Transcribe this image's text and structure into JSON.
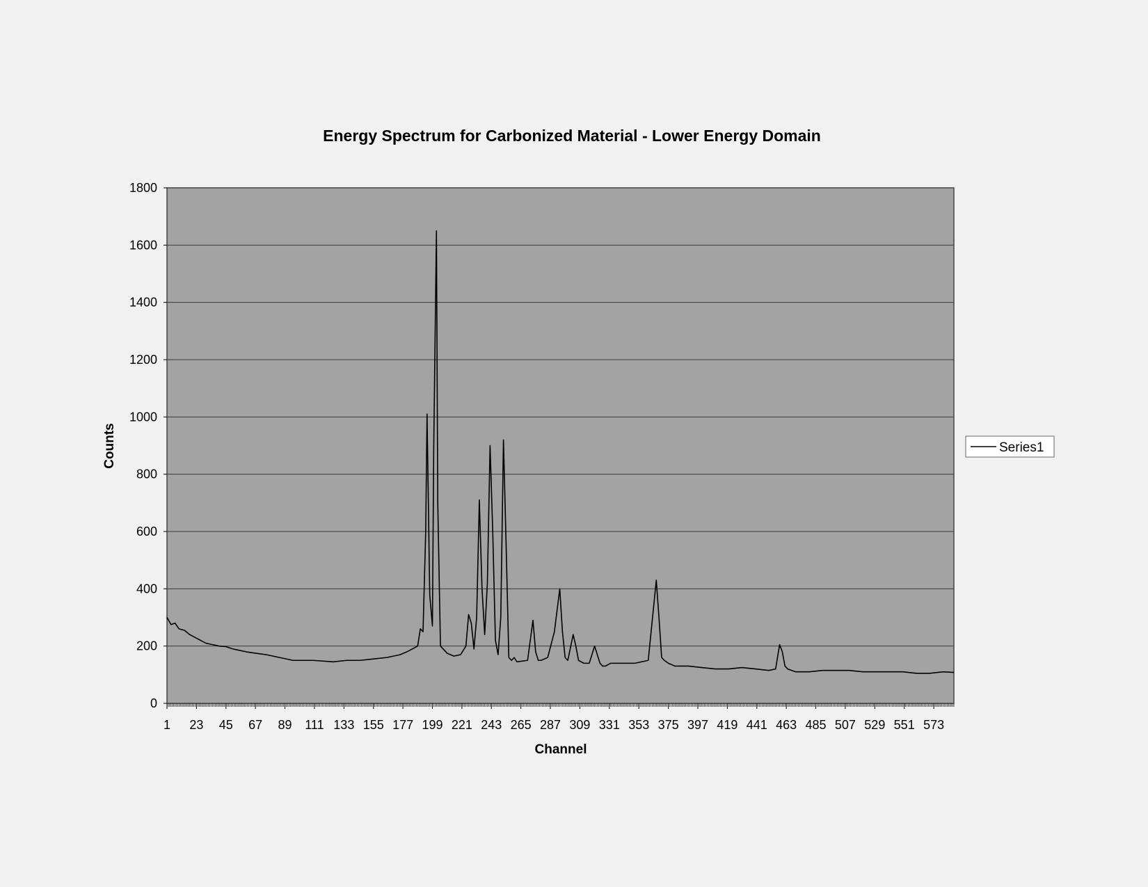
{
  "chart_data": {
    "type": "line",
    "title": "Energy Spectrum for Carbonized Material - Lower Energy Domain",
    "xlabel": "Channel",
    "ylabel": "Counts",
    "xlim": [
      1,
      588
    ],
    "ylim": [
      0,
      1800
    ],
    "yticks": [
      0,
      200,
      400,
      600,
      800,
      1000,
      1200,
      1400,
      1600,
      1800
    ],
    "xticks": [
      1,
      23,
      45,
      67,
      89,
      111,
      133,
      155,
      177,
      199,
      221,
      243,
      265,
      287,
      309,
      331,
      353,
      375,
      397,
      419,
      441,
      463,
      485,
      507,
      529,
      551,
      573
    ],
    "grid": "horizontal",
    "legend_position": "right",
    "plot_bg": "#a3a3a3",
    "line_color": "#000000",
    "series": [
      {
        "name": "Series1",
        "x": [
          1,
          4,
          7,
          10,
          14,
          18,
          22,
          26,
          30,
          35,
          40,
          45,
          50,
          55,
          60,
          67,
          75,
          85,
          95,
          110,
          125,
          135,
          145,
          155,
          165,
          175,
          180,
          184,
          188,
          190,
          192,
          194,
          195,
          197,
          199,
          200,
          202,
          203,
          205,
          210,
          215,
          220,
          224,
          226,
          228,
          230,
          232,
          234,
          236,
          238,
          240,
          242,
          244,
          246,
          248,
          250,
          252,
          254,
          256,
          258,
          260,
          262,
          270,
          274,
          276,
          278,
          280,
          285,
          290,
          294,
          296,
          298,
          300,
          304,
          306,
          308,
          312,
          316,
          320,
          324,
          326,
          328,
          332,
          340,
          350,
          360,
          366,
          368,
          370,
          372,
          375,
          380,
          390,
          400,
          410,
          420,
          430,
          440,
          450,
          455,
          458,
          460,
          462,
          464,
          470,
          480,
          490,
          500,
          510,
          520,
          530,
          540,
          550,
          560,
          570,
          580,
          588
        ],
        "values": [
          300,
          275,
          280,
          260,
          255,
          240,
          230,
          220,
          210,
          205,
          200,
          198,
          190,
          185,
          180,
          175,
          170,
          160,
          150,
          150,
          145,
          150,
          150,
          155,
          160,
          170,
          180,
          190,
          200,
          260,
          250,
          600,
          1010,
          380,
          270,
          900,
          1650,
          700,
          200,
          175,
          165,
          170,
          200,
          310,
          280,
          190,
          300,
          710,
          400,
          240,
          420,
          900,
          600,
          220,
          170,
          300,
          920,
          550,
          160,
          150,
          160,
          145,
          150,
          290,
          180,
          150,
          150,
          160,
          250,
          400,
          250,
          160,
          150,
          240,
          200,
          150,
          140,
          140,
          200,
          140,
          130,
          130,
          140,
          140,
          140,
          150,
          430,
          300,
          160,
          150,
          140,
          130,
          130,
          125,
          120,
          120,
          125,
          120,
          115,
          120,
          205,
          180,
          130,
          120,
          110,
          110,
          115,
          115,
          115,
          110,
          110,
          110,
          110,
          105,
          105,
          110,
          108
        ]
      }
    ]
  }
}
